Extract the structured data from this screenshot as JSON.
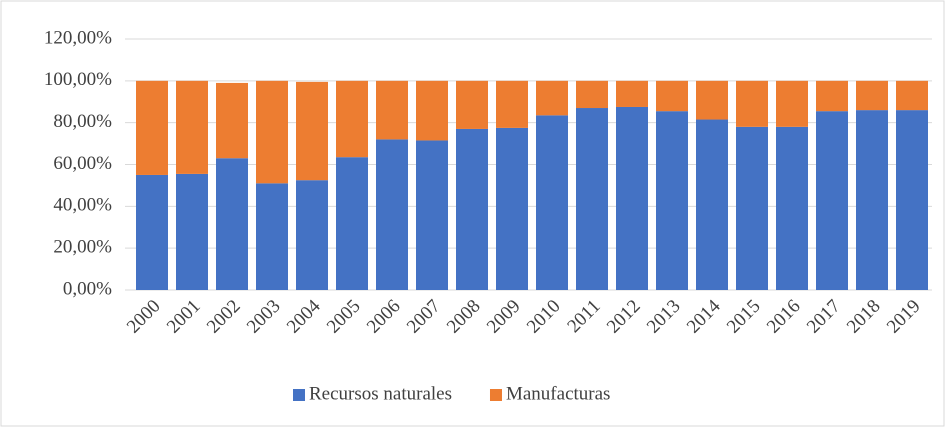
{
  "chart_data": {
    "type": "stacked_bar",
    "categories": [
      "2000",
      "2001",
      "2002",
      "2003",
      "2004",
      "2005",
      "2006",
      "2007",
      "2008",
      "2009",
      "2010",
      "2011",
      "2012",
      "2013",
      "2014",
      "2015",
      "2016",
      "2017",
      "2018",
      "2019"
    ],
    "series": [
      {
        "name": "Recursos naturales",
        "color": "#4472c4",
        "values": [
          55,
          55.5,
          63,
          51,
          52.5,
          63.5,
          72,
          71.5,
          77,
          77.5,
          83.5,
          87,
          87.5,
          85.5,
          81.5,
          78,
          78,
          85.5,
          86,
          86
        ]
      },
      {
        "name": "Manufacturas",
        "color": "#ed7d31",
        "values": [
          45,
          44.5,
          36,
          49,
          47,
          36.5,
          28,
          28.5,
          23,
          22.5,
          16.5,
          13,
          12.5,
          14.5,
          18.5,
          22,
          22,
          14.5,
          14,
          14
        ]
      }
    ],
    "ylim": [
      0,
      120
    ],
    "yticks": [
      {
        "value": 0,
        "label": "0,00%"
      },
      {
        "value": 20,
        "label": "20,00%"
      },
      {
        "value": 40,
        "label": "40,00%"
      },
      {
        "value": 60,
        "label": "60,00%"
      },
      {
        "value": 80,
        "label": "80,00%"
      },
      {
        "value": 100,
        "label": "100,00%"
      },
      {
        "value": 120,
        "label": "120,00%"
      }
    ],
    "grid": true,
    "legend": "bottom"
  }
}
